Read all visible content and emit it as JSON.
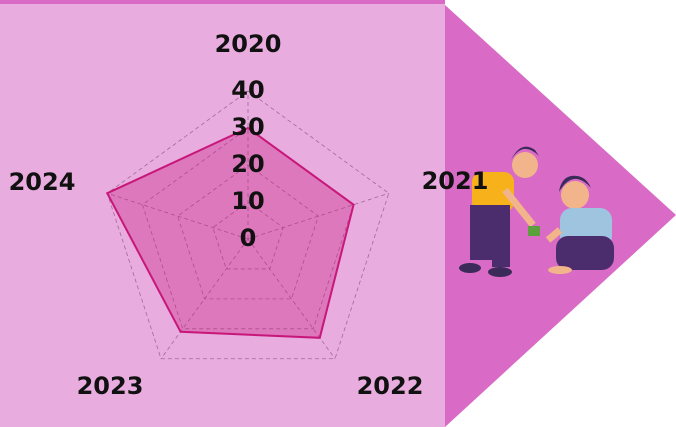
{
  "chart_data": {
    "type": "radar",
    "categories": [
      "2020",
      "2021",
      "2022",
      "2023",
      "2024"
    ],
    "values": [
      30,
      30,
      33,
      31,
      40
    ],
    "ylim": [
      0,
      40
    ],
    "yticks": [
      0,
      10,
      20,
      30,
      40
    ],
    "color": "#c8177a"
  }
}
